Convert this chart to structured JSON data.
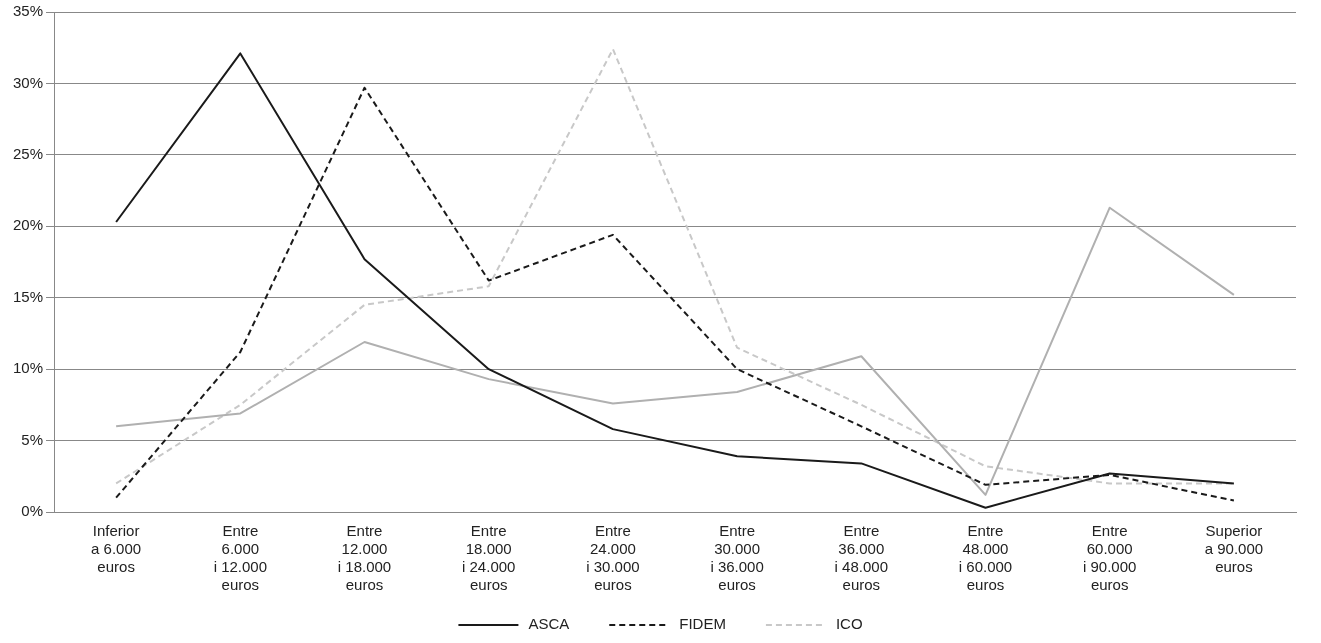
{
  "chart_data": {
    "type": "line",
    "categories": [
      "Inferior a 6.000 euros",
      "Entre 6.000 i 12.000 euros",
      "Entre 12.000 i 18.000 euros",
      "Entre 18.000 i 24.000 euros",
      "Entre 24.000 i 30.000 euros",
      "Entre 30.000 i 36.000 euros",
      "Entre 36.000 i 48.000 euros",
      "Entre 48.000 i 60.000 euros",
      "Entre 60.000 i 90.000 euros",
      "Superior a 90.000 euros"
    ],
    "series": [
      {
        "name": "ASCA",
        "color": "#1a1a1a",
        "line_style": "solid",
        "values": [
          20.3,
          32.1,
          17.7,
          10.0,
          5.8,
          3.9,
          3.4,
          0.3,
          2.7,
          2.0
        ]
      },
      {
        "name": "FIDEM",
        "color": "#1a1a1a",
        "line_style": "dashed",
        "values": [
          1.0,
          11.2,
          29.7,
          16.2,
          19.4,
          10.0,
          6.0,
          1.9,
          2.6,
          0.8
        ]
      },
      {
        "color": "#b0b0b0",
        "line_style": "solid",
        "values": [
          6.0,
          6.9,
          11.9,
          9.3,
          7.6,
          8.4,
          10.9,
          1.2,
          21.3,
          15.2
        ]
      },
      {
        "name": "ICO",
        "color": "#c8c8c8",
        "line_style": "dashed",
        "values": [
          2.0,
          7.5,
          14.5,
          15.8,
          32.4,
          11.5,
          7.5,
          3.2,
          2.0,
          2.0
        ]
      }
    ],
    "ylim": [
      0,
      35
    ],
    "yticks": [
      {
        "value": 0,
        "label": "0%"
      },
      {
        "value": 5,
        "label": "5%"
      },
      {
        "value": 10,
        "label": "10%"
      },
      {
        "value": 15,
        "label": "15%"
      },
      {
        "value": 20,
        "label": "20%"
      },
      {
        "value": 25,
        "label": "25%"
      },
      {
        "value": 30,
        "label": "30%"
      },
      {
        "value": 35,
        "label": "35%"
      }
    ],
    "grid": "y",
    "legend": "bottom",
    "marker": "none"
  }
}
